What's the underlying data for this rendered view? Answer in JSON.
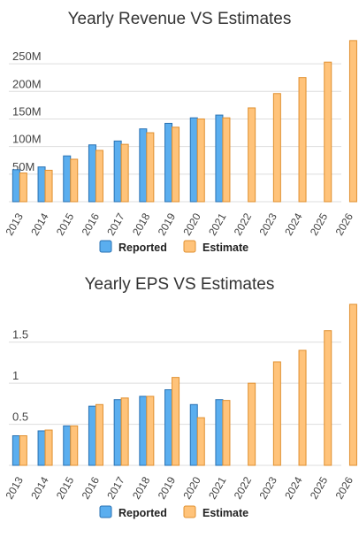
{
  "colors": {
    "reported": "#5aaeef",
    "reported_border": "#2a72b3",
    "estimate": "#ffc37a",
    "estimate_border": "#e09030",
    "grid": "#dddddd"
  },
  "chart_data": [
    {
      "type": "bar",
      "title": "Yearly Revenue VS Estimates",
      "categories": [
        "2013",
        "2014",
        "2015",
        "2016",
        "2017",
        "2018",
        "2019",
        "2020",
        "2021",
        "2022",
        "2023",
        "2024",
        "2025",
        "2026"
      ],
      "series": [
        {
          "name": "Reported",
          "values": [
            58,
            63,
            83,
            103,
            110,
            132,
            142,
            152,
            157,
            null,
            null,
            null,
            null,
            null
          ]
        },
        {
          "name": "Estimate",
          "values": [
            52,
            57,
            77,
            93,
            104,
            125,
            135,
            150,
            152,
            170,
            196,
            225,
            253,
            292
          ]
        }
      ],
      "y_ticks": [
        {
          "value": 50,
          "label": "50M"
        },
        {
          "value": 100,
          "label": "100M"
        },
        {
          "value": 150,
          "label": "150M"
        },
        {
          "value": 200,
          "label": "200M"
        },
        {
          "value": 250,
          "label": "250M"
        }
      ],
      "ylim": [
        0,
        295
      ],
      "grid": true,
      "legend": "bottom-center"
    },
    {
      "type": "bar",
      "title": "Yearly EPS VS Estimates",
      "categories": [
        "2013",
        "2014",
        "2015",
        "2016",
        "2017",
        "2018",
        "2019",
        "2020",
        "2021",
        "2022",
        "2023",
        "2024",
        "2025",
        "2026"
      ],
      "series": [
        {
          "name": "Reported",
          "values": [
            0.36,
            0.42,
            0.48,
            0.72,
            0.8,
            0.84,
            0.92,
            0.74,
            0.8,
            null,
            null,
            null,
            null,
            null
          ]
        },
        {
          "name": "Estimate",
          "values": [
            0.36,
            0.43,
            0.48,
            0.74,
            0.82,
            0.84,
            1.07,
            0.58,
            0.79,
            1.0,
            1.26,
            1.4,
            1.64,
            1.96
          ]
        }
      ],
      "y_ticks": [
        {
          "value": 0.5,
          "label": "0.5"
        },
        {
          "value": 1,
          "label": "1"
        },
        {
          "value": 1.5,
          "label": "1.5"
        }
      ],
      "ylim": [
        0,
        1.96
      ],
      "grid": true,
      "legend": "bottom-center"
    }
  ]
}
